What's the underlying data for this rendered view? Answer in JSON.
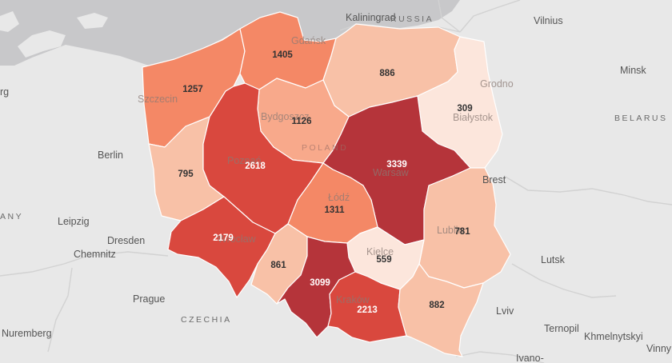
{
  "colors": {
    "background": "#e8e8e8",
    "sea": "#c8c8ca",
    "borders": "#d2d2d2",
    "text_on_light": "#333333",
    "text_on_dark": "#ffffff"
  },
  "regions": [
    {
      "id": "zachodniopomorskie",
      "value": "1257",
      "fill": "#f48866"
    },
    {
      "id": "pomorskie",
      "value": "1405",
      "fill": "#f48866"
    },
    {
      "id": "warminsko-mazurskie",
      "value": "886",
      "fill": "#f8c1a7"
    },
    {
      "id": "podlaskie",
      "value": "309",
      "fill": "#fce6dc"
    },
    {
      "id": "kujawsko-pomorskie",
      "value": "1126",
      "fill": "#f8a98b"
    },
    {
      "id": "lubuskie",
      "value": "795",
      "fill": "#f8c1a7"
    },
    {
      "id": "wielkopolskie",
      "value": "2618",
      "fill": "#d9483e"
    },
    {
      "id": "mazowieckie",
      "value": "3339",
      "fill": "#b5343a"
    },
    {
      "id": "lodzkie",
      "value": "1311",
      "fill": "#f48866"
    },
    {
      "id": "lubelskie",
      "value": "781",
      "fill": "#f8c1a7"
    },
    {
      "id": "dolnoslaskie",
      "value": "2179",
      "fill": "#d9483e"
    },
    {
      "id": "opolskie",
      "value": "861",
      "fill": "#f8c1a7"
    },
    {
      "id": "swietokrzyskie",
      "value": "559",
      "fill": "#fce6dc"
    },
    {
      "id": "slaskie",
      "value": "3099",
      "fill": "#b5343a"
    },
    {
      "id": "malopolskie",
      "value": "2213",
      "fill": "#d9483e"
    },
    {
      "id": "podkarpackie",
      "value": "882",
      "fill": "#f8c1a7"
    }
  ],
  "places": [
    {
      "id": "kaliningrad",
      "label": "Kaliningrad"
    },
    {
      "id": "russia",
      "label": "RUSSIA"
    },
    {
      "id": "vilnius",
      "label": "Vilnius"
    },
    {
      "id": "minsk",
      "label": "Minsk"
    },
    {
      "id": "belarus",
      "label": "BELARUS"
    },
    {
      "id": "grodno",
      "label": "Grodno"
    },
    {
      "id": "gdansk",
      "label": "Gdańsk"
    },
    {
      "id": "szczecin",
      "label": "Szczecin"
    },
    {
      "id": "bydgoszcz",
      "label": "Bydgoszcz"
    },
    {
      "id": "bialystok",
      "label": "Białystok"
    },
    {
      "id": "poland",
      "label": "POLAND"
    },
    {
      "id": "warsaw",
      "label": "Warsaw"
    },
    {
      "id": "poznan",
      "label": "Poznań"
    },
    {
      "id": "lodz",
      "label": "Łódź"
    },
    {
      "id": "brest",
      "label": "Brest"
    },
    {
      "id": "lublin",
      "label": "Lublin"
    },
    {
      "id": "kielce",
      "label": "Kielce"
    },
    {
      "id": "wroclaw",
      "label": "Wrocław"
    },
    {
      "id": "krakow",
      "label": "Kraków"
    },
    {
      "id": "berlin",
      "label": "Berlin"
    },
    {
      "id": "hamburg",
      "label": "rg"
    },
    {
      "id": "germany",
      "label": "ANY"
    },
    {
      "id": "leipzig",
      "label": "Leipzig"
    },
    {
      "id": "dresden",
      "label": "Dresden"
    },
    {
      "id": "chemnitz",
      "label": "Chemnitz"
    },
    {
      "id": "prague",
      "label": "Prague"
    },
    {
      "id": "czechia",
      "label": "CZECHIA"
    },
    {
      "id": "nuremberg",
      "label": "Nuremberg"
    },
    {
      "id": "lutsk",
      "label": "Lutsk"
    },
    {
      "id": "lviv",
      "label": "Lviv"
    },
    {
      "id": "ternopil",
      "label": "Ternopil"
    },
    {
      "id": "khmelnytskyi",
      "label": "Khmelnytskyi"
    },
    {
      "id": "ivano",
      "label": "Ivano-"
    },
    {
      "id": "vinny",
      "label": "Vinny"
    }
  ]
}
